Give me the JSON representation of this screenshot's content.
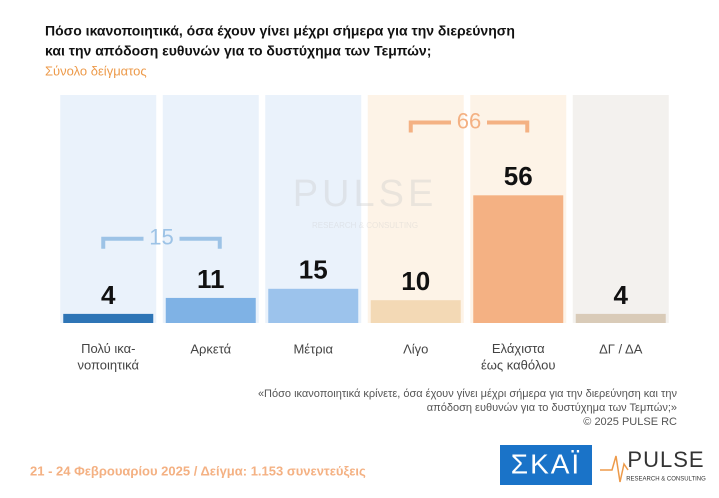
{
  "chart_data": {
    "type": "bar",
    "title": [
      "Πόσο ικανοποιητικά, όσα έχουν γίνει μέχρι σήμερα για την διερεύνηση",
      "και την απόδοση ευθυνών για το δυστύχημα των Τεμπών;"
    ],
    "subtitle": "Σύνολο δείγματος",
    "categories": [
      "Πολύ ικα-\nνοποιητικά",
      "Αρκετά",
      "Μέτρια",
      "Λίγο",
      "Ελάχιστα\nέως καθόλου",
      "ΔΓ / ΔΑ"
    ],
    "values": [
      4,
      11,
      15,
      10,
      56,
      4
    ],
    "colors": [
      "#2e75b6",
      "#7fb2e5",
      "#9cc3ec",
      "#f3d9b5",
      "#f4b183",
      "#d9cbb8"
    ],
    "panel_colors": [
      "#eaf2fb",
      "#eaf2fb",
      "#eaf2fb",
      "#fdf3e7",
      "#fdf3e7",
      "#f3f1ee"
    ],
    "ylim": [
      0,
      100
    ],
    "groups": [
      {
        "value": 15,
        "span": [
          "Πολύ ικα-\nνοποιητικά",
          "Αρκετά"
        ],
        "color": "#9dc3e6"
      },
      {
        "value": 66,
        "span": [
          "Λίγο",
          "Ελάχιστα\nέως καθόλου"
        ],
        "color": "#f4b183"
      }
    ],
    "footnote": [
      "«Πόσο ικανοποιητικά κρίνετε, όσα έχουν γίνει μέχρι σήμερα για την διερεύνηση και την",
      "απόδοση ευθυνών για το δυστύχημα των Τεμπών;»",
      "©  2025  PULSE RC"
    ],
    "footer": "21 - 24 Φεβρουαρίου 2025  /  Δείγμα:  1.153 συνεντεύξεις",
    "logos": {
      "skai": "ΣΚΑΪ",
      "pulse": "PULSE",
      "pulse_sub": "RESEARCH & CONSULTING"
    }
  }
}
